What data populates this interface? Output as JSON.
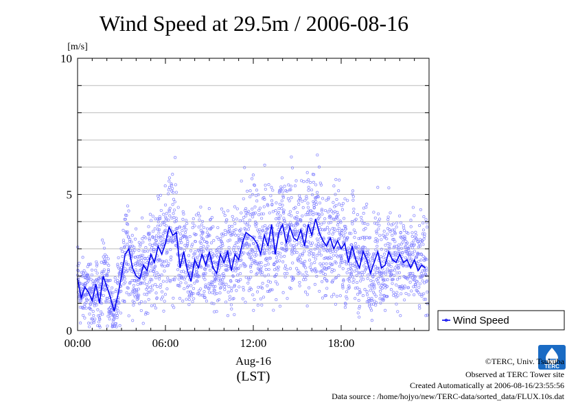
{
  "chart_data": {
    "type": "scatter",
    "title": "Wind Speed at 29.5m / 2006-08-16",
    "ylabel": "[m/s]",
    "xlabel": "Aug-16",
    "xlabel2": "(LST)",
    "xlim": [
      0,
      24
    ],
    "ylim": [
      0,
      10
    ],
    "x_ticks": [
      {
        "value": 0,
        "label": "00:00"
      },
      {
        "value": 6,
        "label": "06:00"
      },
      {
        "value": 12,
        "label": "12:00"
      },
      {
        "value": 18,
        "label": "18:00"
      }
    ],
    "y_ticks": [
      {
        "value": 0,
        "label": "0"
      },
      {
        "value": 5,
        "label": "5"
      },
      {
        "value": 10,
        "label": "10"
      }
    ],
    "gridlines_y": [
      1,
      2,
      3,
      4,
      5,
      6,
      7,
      8,
      9
    ],
    "legend_position": "right",
    "series": [
      {
        "name": "Wind Speed",
        "color": "#0000ee",
        "scatter_color": "#8080ff",
        "x": [
          0.0,
          0.25,
          0.5,
          0.75,
          1.0,
          1.25,
          1.5,
          1.75,
          2.0,
          2.25,
          2.5,
          2.75,
          3.0,
          3.25,
          3.5,
          3.75,
          4.0,
          4.25,
          4.5,
          4.75,
          5.0,
          5.25,
          5.5,
          5.75,
          6.0,
          6.25,
          6.5,
          6.75,
          7.0,
          7.25,
          7.5,
          7.75,
          8.0,
          8.25,
          8.5,
          8.75,
          9.0,
          9.25,
          9.5,
          9.75,
          10.0,
          10.25,
          10.5,
          10.75,
          11.0,
          11.25,
          11.5,
          11.75,
          12.0,
          12.25,
          12.5,
          12.75,
          13.0,
          13.25,
          13.5,
          13.75,
          14.0,
          14.25,
          14.5,
          14.75,
          15.0,
          15.25,
          15.5,
          15.75,
          16.0,
          16.25,
          16.5,
          16.75,
          17.0,
          17.25,
          17.5,
          17.75,
          18.0,
          18.25,
          18.5,
          18.75,
          19.0,
          19.25,
          19.5,
          19.75,
          20.0,
          20.25,
          20.5,
          20.75,
          21.0,
          21.25,
          21.5,
          21.75,
          22.0,
          22.25,
          22.5,
          22.75,
          23.0,
          23.25,
          23.5,
          23.75
        ],
        "y": [
          1.9,
          1.2,
          1.6,
          1.4,
          1.1,
          1.7,
          1.0,
          2.0,
          1.6,
          1.2,
          0.7,
          1.3,
          2.0,
          2.8,
          3.0,
          2.3,
          2.0,
          1.9,
          2.4,
          2.2,
          2.8,
          2.5,
          3.1,
          2.8,
          3.2,
          3.8,
          3.5,
          3.6,
          2.3,
          2.9,
          2.2,
          1.8,
          2.6,
          2.3,
          2.8,
          2.4,
          2.9,
          2.3,
          2.1,
          2.8,
          2.5,
          2.9,
          2.2,
          2.8,
          2.6,
          3.2,
          3.6,
          3.5,
          3.4,
          3.2,
          2.8,
          3.5,
          3.1,
          3.9,
          2.8,
          3.6,
          3.9,
          3.2,
          3.8,
          3.4,
          3.3,
          3.7,
          3.1,
          3.9,
          3.5,
          4.1,
          3.6,
          3.3,
          3.1,
          3.4,
          3.0,
          3.3,
          3.0,
          3.2,
          2.5,
          3.1,
          2.6,
          2.3,
          2.9,
          2.6,
          2.1,
          2.5,
          2.9,
          2.3,
          2.4,
          2.9,
          2.6,
          2.5,
          2.8,
          2.5,
          2.6,
          2.3,
          2.6,
          2.2,
          2.4,
          2.3
        ]
      }
    ]
  },
  "credits": {
    "line1": "©TERC, Univ. Tsukuba",
    "line2": "Observed at TERC Tower site",
    "line3": "Created Automatically at 2006-08-16/23:55:56",
    "line4": "Data source : /home/hojyo/new/TERC-data/sorted_data/FLUX.10s.dat"
  },
  "logo": {
    "text": "TERC",
    "icon": "terc-tower-logo",
    "color": "#1a6bc4"
  },
  "colors": {
    "grid": "#bbbbbb",
    "axis": "#000000"
  }
}
